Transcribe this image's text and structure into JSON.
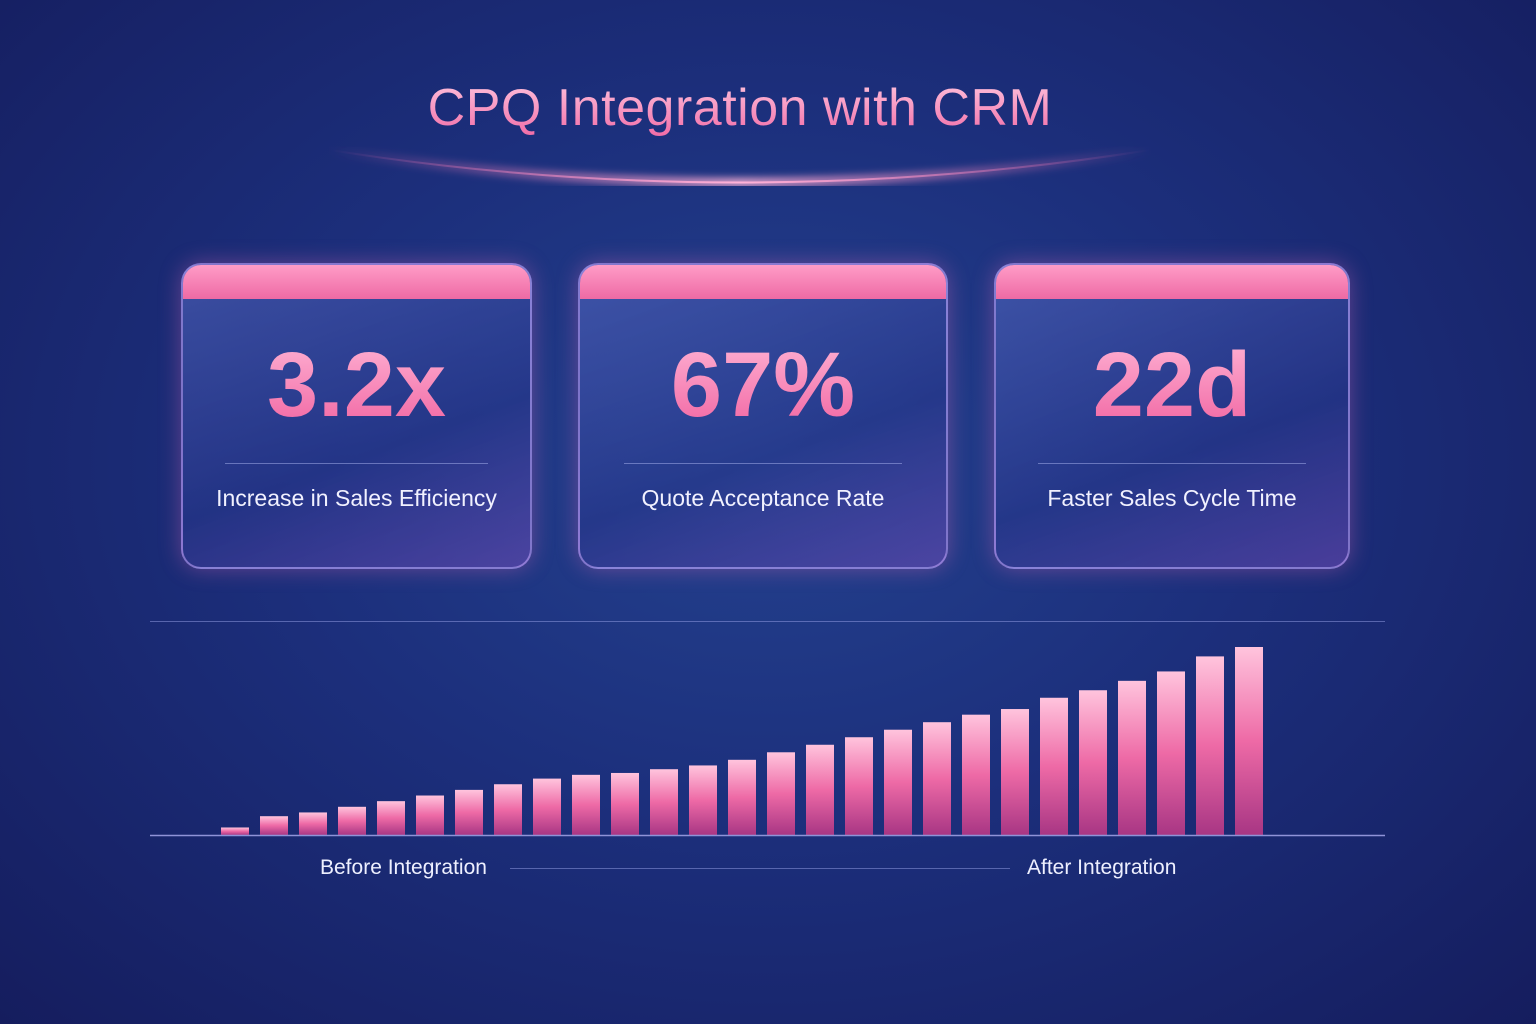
{
  "title": "CPQ Integration with CRM",
  "colors": {
    "background": "#1c2f7c",
    "accent": "#f06aa6",
    "card_header": "#ff9cc7"
  },
  "cards": [
    {
      "value": "3.2x",
      "label": "Increase in Sales Efficiency"
    },
    {
      "value": "67%",
      "label": "Quote Acceptance Rate"
    },
    {
      "value": "22d",
      "label": "Faster Sales Cycle Time"
    }
  ],
  "chart_data": {
    "type": "bar",
    "title": "",
    "xlabel": "",
    "ylabel": "",
    "x_start_label": "Before Integration",
    "x_end_label": "After Integration",
    "values": [
      4,
      10,
      12,
      15,
      18,
      21,
      24,
      27,
      30,
      32,
      33,
      35,
      37,
      40,
      44,
      48,
      52,
      56,
      60,
      64,
      67,
      73,
      77,
      82,
      87,
      95,
      100
    ],
    "ylim": [
      0,
      100
    ],
    "grid": false,
    "bar_color": "#f06aa6"
  }
}
